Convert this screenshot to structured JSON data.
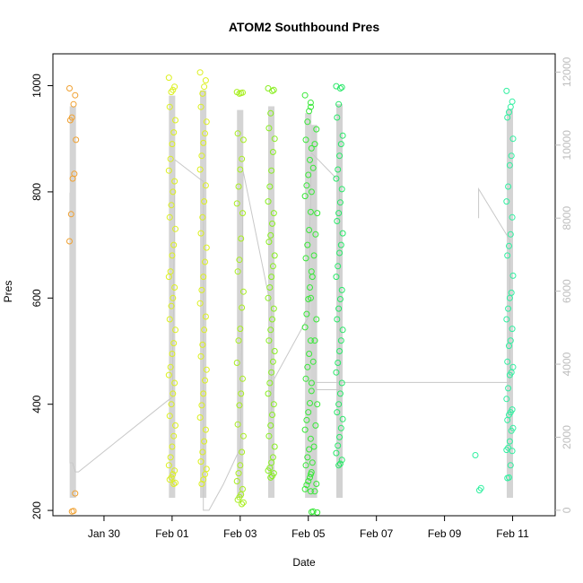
{
  "chart_data": {
    "type": "scatter",
    "title": "ATOM2 Southbound Pres",
    "xlabel": "Date",
    "ylabel": "Pres",
    "xlim": [
      "2024-01-28T12:00",
      "2024-02-12T06:00"
    ],
    "ylim": [
      190,
      1060
    ],
    "y2lim": [
      -150,
      12500
    ],
    "x_ticks": [
      {
        "value": "2024-01-30T00:00",
        "label": "Jan 30"
      },
      {
        "value": "2024-02-01T00:00",
        "label": "Feb 01"
      },
      {
        "value": "2024-02-03T00:00",
        "label": "Feb 03"
      },
      {
        "value": "2024-02-05T00:00",
        "label": "Feb 05"
      },
      {
        "value": "2024-02-07T00:00",
        "label": "Feb 07"
      },
      {
        "value": "2024-02-09T00:00",
        "label": "Feb 09"
      },
      {
        "value": "2024-02-11T00:00",
        "label": "Feb 11"
      }
    ],
    "y_ticks": [
      200,
      400,
      600,
      800,
      1000
    ],
    "y2_ticks": [
      0,
      2000,
      4000,
      6000,
      8000,
      10000,
      12000
    ],
    "grid": false,
    "profiles": [
      {
        "time": "2024-01-29T02:00",
        "color": "#f0a030",
        "pres": [
          995,
          982,
          965,
          940,
          935,
          898,
          834,
          825,
          758,
          707,
          232,
          199,
          198
        ]
      },
      {
        "time": "2024-02-01T00:00",
        "color": "#dcf020",
        "pres": [
          1015,
          998,
          992,
          988,
          960,
          935,
          912,
          890,
          862,
          840,
          820,
          800,
          775,
          752,
          730,
          700,
          680,
          650,
          640,
          620,
          600,
          585,
          560,
          540,
          515,
          495,
          470,
          455,
          440,
          420,
          400,
          378,
          360,
          340,
          320,
          300,
          285,
          275,
          268,
          262,
          258,
          252,
          250
        ]
      },
      {
        "time": "2024-02-01T22:00",
        "color": "#dcf020",
        "pres": [
          1025,
          1010,
          998,
          985,
          960,
          932,
          910,
          892,
          868,
          842,
          812,
          782,
          752,
          722,
          695,
          668,
          640,
          615,
          590,
          565,
          540,
          512,
          490,
          465,
          445,
          420,
          398,
          375,
          352,
          330,
          310,
          292,
          278,
          268,
          258,
          250
        ]
      },
      {
        "time": "2024-02-03T00:00",
        "color": "#a8ee20",
        "pres": [
          988,
          987,
          986,
          985,
          910,
          898,
          862,
          842,
          810,
          778,
          760,
          712,
          672,
          650,
          612,
          582,
          542,
          520,
          478,
          448,
          420,
          398,
          362,
          340,
          310,
          285,
          270,
          255,
          240,
          230,
          225,
          220,
          215,
          212
        ]
      },
      {
        "time": "2024-02-03T22:00",
        "color": "#88ee20",
        "pres": [
          995,
          992,
          990,
          948,
          920,
          900,
          875,
          840,
          810,
          782,
          760,
          740,
          718,
          706,
          680,
          660,
          640,
          620,
          600,
          580,
          560,
          540,
          520,
          500,
          480,
          460,
          440,
          420,
          400,
          380,
          360,
          340,
          320,
          300,
          290,
          280,
          275,
          270,
          265,
          262
        ]
      },
      {
        "time": "2024-02-05T00:00",
        "color": "#38e838",
        "pres": [
          982,
          968,
          952,
          932,
          898,
          882,
          860,
          832,
          812,
          792,
          762,
          728,
          700,
          675,
          650,
          620,
          598,
          570,
          545,
          520,
          495,
          470,
          448,
          425,
          402,
          385,
          370,
          352,
          335,
          315,
          300,
          285,
          272,
          262,
          255,
          248,
          240,
          236
        ]
      },
      {
        "time": "2024-02-05T04:00",
        "color": "#38e838",
        "pres": [
          960,
          918,
          890,
          845,
          800,
          760,
          720,
          680,
          640,
          600,
          560,
          520,
          480,
          440,
          400,
          360,
          320,
          290,
          268,
          250,
          236,
          198,
          197,
          196
        ]
      },
      {
        "time": "2024-02-05T22:00",
        "color": "#28e868",
        "pres": [
          999,
          997,
          995,
          965,
          940,
          906,
          890,
          868,
          842,
          825,
          805,
          780,
          760,
          745,
          722,
          700,
          685,
          660,
          640,
          615,
          598,
          580,
          560,
          540,
          520,
          500,
          478,
          460,
          440,
          420,
          400,
          385,
          372,
          355,
          338,
          322,
          308,
          295,
          288,
          285
        ]
      },
      {
        "time": "2024-02-10T00:00",
        "color": "#30f0a0",
        "pres": [
          304,
          242,
          238
        ]
      },
      {
        "time": "2024-02-10T22:00",
        "color": "#30f0a0",
        "pres": [
          990,
          970,
          960,
          950,
          940,
          900,
          868,
          850,
          810,
          782,
          752,
          720,
          698,
          680,
          642,
          610,
          600,
          580,
          560,
          542,
          520,
          510,
          480,
          470,
          460,
          455,
          430,
          410,
          390,
          385,
          380,
          370,
          355,
          350,
          330,
          318,
          314,
          312,
          285,
          262,
          261
        ]
      }
    ],
    "trace": [
      [
        "2024-01-29T00:00",
        8700
      ],
      [
        "2024-01-29T00:00",
        1300
      ],
      [
        "2024-01-29T02:00",
        1300
      ],
      [
        "2024-01-29T04:00",
        1050
      ],
      [
        "2024-01-29T06:00",
        1050
      ],
      [
        "2024-02-01T00:00",
        3100
      ],
      [
        "2024-02-01T02:00",
        9600
      ],
      [
        "2024-02-01T22:00",
        9000
      ],
      [
        "2024-02-01T22:00",
        4300
      ],
      [
        "2024-02-01T22:00",
        0
      ],
      [
        "2024-02-02T02:00",
        0
      ],
      [
        "2024-02-02T12:00",
        700
      ],
      [
        "2024-02-03T00:00",
        1700
      ],
      [
        "2024-02-03T02:00",
        9300
      ],
      [
        "2024-02-03T22:00",
        5500
      ],
      [
        "2024-02-03T22:00",
        2700
      ],
      [
        "2024-02-04T00:00",
        3600
      ],
      [
        "2024-02-05T00:00",
        5300
      ],
      [
        "2024-02-05T02:00",
        9800
      ],
      [
        "2024-02-05T22:00",
        9000
      ],
      [
        "2024-02-05T22:00",
        3300
      ],
      [
        "2024-02-05T06:00",
        3300
      ],
      [
        "2024-02-05T04:00",
        3500
      ],
      [
        "2024-02-06T00:00",
        3500
      ],
      [
        "2024-02-10T22:00",
        3500
      ],
      [
        "2024-02-10T22:00",
        7400
      ],
      [
        "2024-02-10T00:00",
        8800
      ],
      [
        "2024-02-10T00:00",
        8000
      ]
    ]
  }
}
